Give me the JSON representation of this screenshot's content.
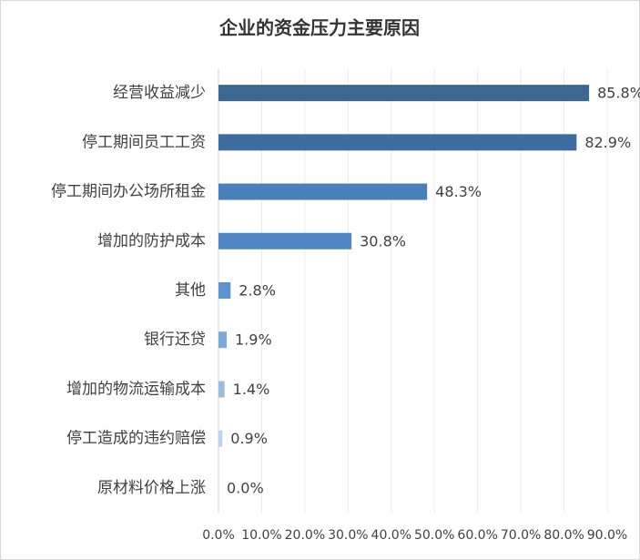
{
  "chart_data": {
    "type": "bar",
    "orientation": "horizontal",
    "title": "企业的资金压力主要原因",
    "categories": [
      "经营收益减少",
      "停工期间员工工资",
      "停工期间办公场所租金",
      "增加的防护成本",
      "其他",
      "银行还贷",
      "增加的物流运输成本",
      "停工造成的违约赔偿",
      "原材料价格上涨"
    ],
    "values": [
      85.8,
      82.9,
      48.3,
      30.8,
      2.8,
      1.9,
      1.4,
      0.9,
      0.0
    ],
    "value_labels": [
      "85.8%",
      "82.9%",
      "48.3%",
      "30.8%",
      "2.8%",
      "1.9%",
      "1.4%",
      "0.9%",
      "0.0%"
    ],
    "colors": [
      "#3b6791",
      "#3d6da0",
      "#4a7fbb",
      "#4f86c3",
      "#5b93cf",
      "#7ea8d8",
      "#9bbbe1",
      "#bfd2ec",
      "#d6e2f2"
    ],
    "xlim": [
      0,
      90
    ],
    "xticks": [
      {
        "value": 0,
        "label": "0.0%"
      },
      {
        "value": 10,
        "label": "10.0%"
      },
      {
        "value": 20,
        "label": "20.0%"
      },
      {
        "value": 30,
        "label": "30.0%"
      },
      {
        "value": 40,
        "label": "40.0%"
      },
      {
        "value": 50,
        "label": "50.0%"
      },
      {
        "value": 60,
        "label": "60.0%"
      },
      {
        "value": 70,
        "label": "70.0%"
      },
      {
        "value": 80,
        "label": "80.0%"
      },
      {
        "value": 90,
        "label": "90.0%"
      }
    ],
    "grid": true
  }
}
